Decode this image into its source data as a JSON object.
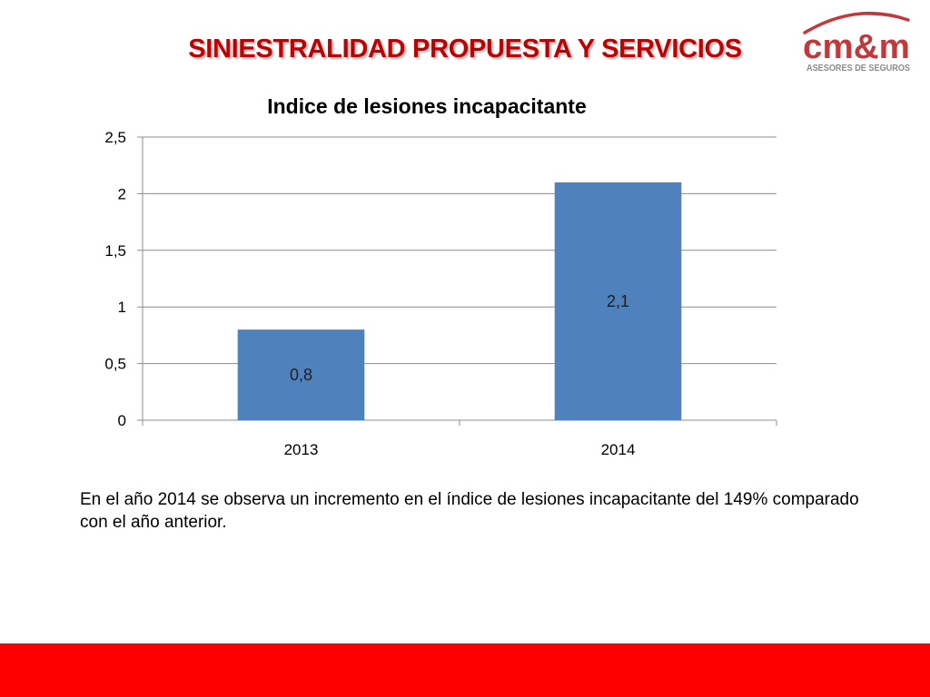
{
  "slide": {
    "title": "SINIESTRALIDAD PROPUESTA Y SERVICIOS",
    "caption": "En el año 2014 se  observa un incremento en el índice de lesiones incapacitante del 149% comparado con el año anterior."
  },
  "logo": {
    "brand": "cm&m",
    "tagline": "ASESORES DE SEGUROS",
    "color": "#c0393b"
  },
  "colors": {
    "title": "#c00000",
    "bar": "#4f81bd",
    "footer": "#ff0000"
  },
  "chart_data": {
    "type": "bar",
    "title": "Indice de lesiones incapacitante",
    "categories": [
      "2013",
      "2014"
    ],
    "values": [
      0.8,
      2.1
    ],
    "data_labels": [
      "0,8",
      "2,1"
    ],
    "ylim": [
      0,
      2.5
    ],
    "yticks": [
      0,
      0.5,
      1,
      1.5,
      2,
      2.5
    ],
    "ytick_labels": [
      "0",
      "0,5",
      "1",
      "1,5",
      "2",
      "2,5"
    ],
    "xlabel": "",
    "ylabel": "",
    "grid": true,
    "legend": "none"
  }
}
